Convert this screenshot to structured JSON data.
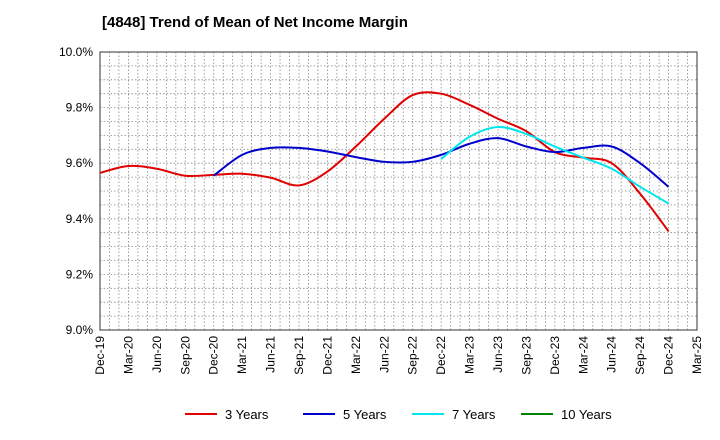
{
  "chart_data": {
    "type": "line",
    "title": "[4848]  Trend of Mean of Net Income Margin",
    "xlabel": "",
    "ylabel": "",
    "y_tick_labels": [
      "9.0%",
      "9.2%",
      "9.4%",
      "9.6%",
      "9.8%",
      "10.0%"
    ],
    "y_ticks": [
      9.0,
      9.2,
      9.4,
      9.6,
      9.8,
      10.0
    ],
    "ylim": [
      9.0,
      10.0
    ],
    "x_tick_labels": [
      "Dec-19",
      "Mar-20",
      "Jun-20",
      "Sep-20",
      "Dec-20",
      "Mar-21",
      "Jun-21",
      "Sep-21",
      "Dec-21",
      "Mar-22",
      "Jun-22",
      "Sep-22",
      "Dec-22",
      "Mar-23",
      "Jun-23",
      "Sep-23",
      "Dec-23",
      "Mar-24",
      "Jun-24",
      "Sep-24",
      "Dec-24",
      "Mar-25"
    ],
    "grid": true,
    "legend_position": "bottom",
    "series": [
      {
        "name": "3 Years",
        "color": "#e00000",
        "x": [
          "Dec-19",
          "Mar-20",
          "Jun-20",
          "Sep-20",
          "Dec-20",
          "Mar-21",
          "Jun-21",
          "Sep-21",
          "Dec-21",
          "Mar-22",
          "Jun-22",
          "Sep-22",
          "Dec-22",
          "Mar-23",
          "Jun-23",
          "Sep-23",
          "Dec-23",
          "Mar-24",
          "Jun-24",
          "Sep-24",
          "Dec-24"
        ],
        "values": [
          9.565,
          9.59,
          9.58,
          9.555,
          9.558,
          9.562,
          9.548,
          9.52,
          9.57,
          9.66,
          9.76,
          9.845,
          9.85,
          9.81,
          9.76,
          9.715,
          9.64,
          9.62,
          9.6,
          9.49,
          9.355
        ]
      },
      {
        "name": "5 Years",
        "color": "#0000cc",
        "x": [
          "Dec-20",
          "Mar-21",
          "Jun-21",
          "Sep-21",
          "Dec-21",
          "Mar-22",
          "Jun-22",
          "Sep-22",
          "Dec-22",
          "Mar-23",
          "Jun-23",
          "Sep-23",
          "Dec-23",
          "Mar-24",
          "Jun-24",
          "Sep-24",
          "Dec-24"
        ],
        "values": [
          9.555,
          9.63,
          9.655,
          9.655,
          9.642,
          9.622,
          9.605,
          9.605,
          9.63,
          9.67,
          9.69,
          9.66,
          9.64,
          9.655,
          9.66,
          9.6,
          9.515
        ]
      },
      {
        "name": "7 Years",
        "color": "#00e5ee",
        "x": [
          "Dec-22",
          "Mar-23",
          "Jun-23",
          "Sep-23",
          "Dec-23",
          "Mar-24",
          "Jun-24",
          "Sep-24",
          "Dec-24"
        ],
        "values": [
          9.615,
          9.695,
          9.73,
          9.705,
          9.66,
          9.62,
          9.58,
          9.515,
          9.455
        ]
      },
      {
        "name": "10 Years",
        "color": "#008000",
        "x": [],
        "values": []
      }
    ]
  }
}
